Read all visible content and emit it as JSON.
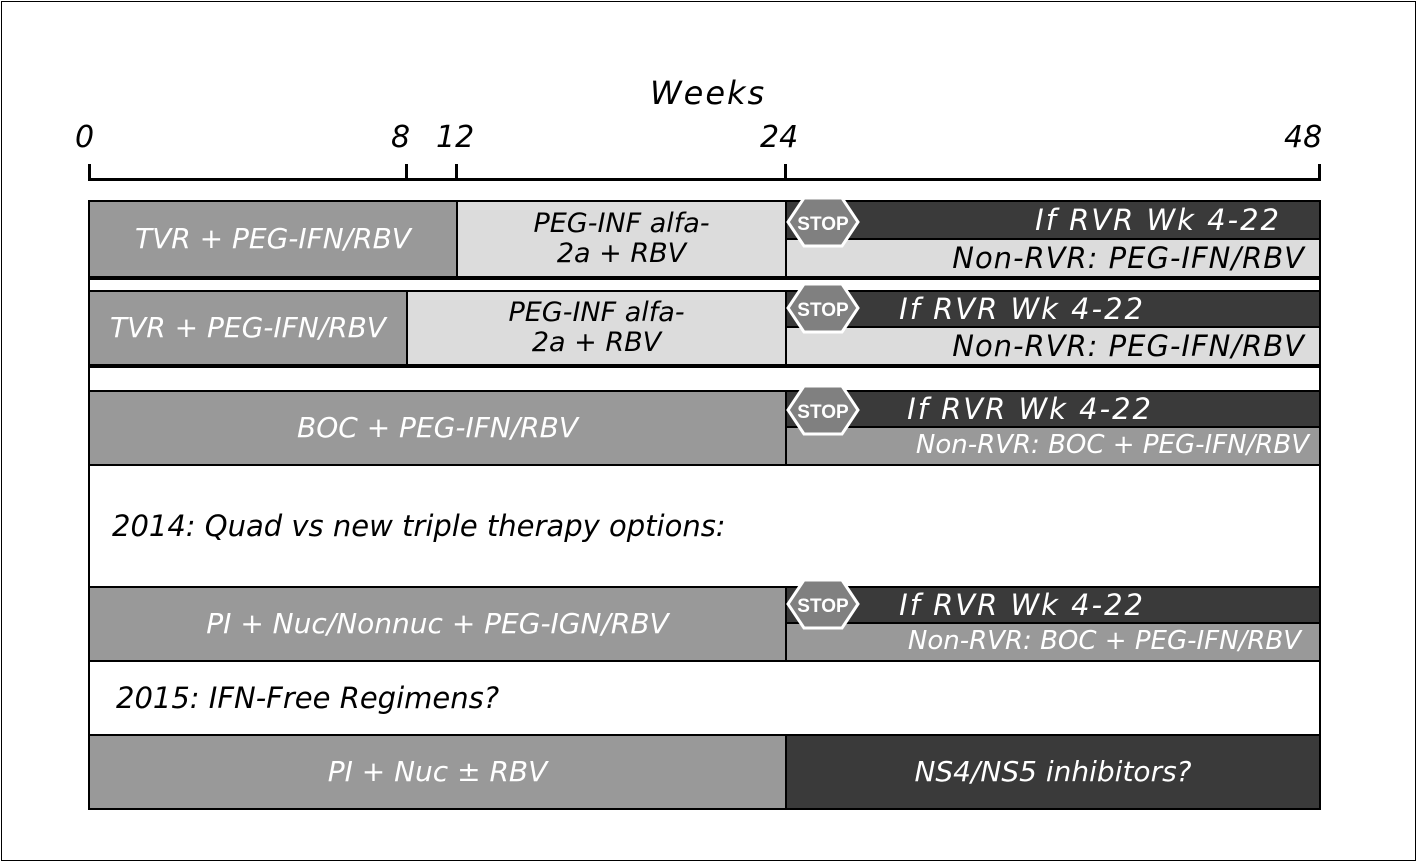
{
  "axis": {
    "title": "Weeks",
    "ticks": [
      "0",
      "8",
      "12",
      "24",
      "48"
    ]
  },
  "rows": [
    {
      "first": "TVR + PEG-IFN/RBV",
      "second": "PEG-INF alfa-\n2a + RBV",
      "stop": "STOP",
      "rvr": "If RVR Wk 4-22",
      "nonrvr": "Non-RVR: PEG-IFN/RBV"
    },
    {
      "first": "TVR + PEG-IFN/RBV",
      "second": "PEG-INF alfa-\n2a + RBV",
      "stop": "STOP",
      "rvr": "If RVR Wk 4-22",
      "nonrvr": "Non-RVR: PEG-IFN/RBV"
    },
    {
      "first": "BOC + PEG-IFN/RBV",
      "stop": "STOP",
      "rvr": "If RVR Wk 4-22",
      "nonrvr": "Non-RVR: BOC + PEG-IFN/RBV"
    },
    {
      "heading": "2014: Quad vs new triple therapy options:"
    },
    {
      "first": "PI + Nuc/Nonnuc + PEG-IGN/RBV",
      "stop": "STOP",
      "rvr": "If RVR Wk 4-22",
      "nonrvr": "Non-RVR: BOC + PEG-IFN/RBV"
    },
    {
      "heading": "2015: IFN-Free Regimens?"
    },
    {
      "first": "PI + Nuc ± RBV",
      "second": "NS4/NS5 inhibitors?"
    }
  ],
  "colors": {
    "medium": "#999999",
    "light": "#dcdcdc",
    "dark": "#3a3a3a",
    "stop_sign": "#808080"
  }
}
